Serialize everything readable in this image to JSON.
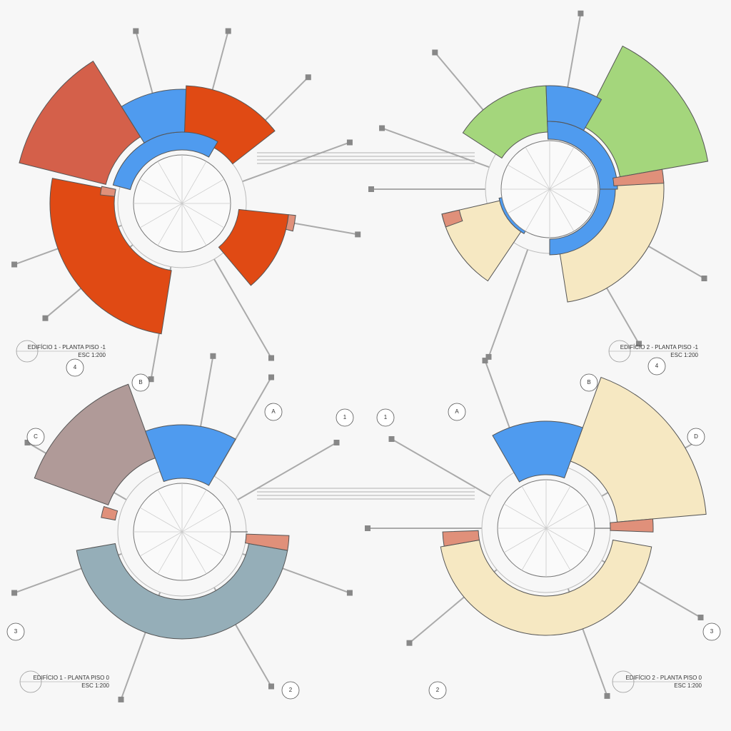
{
  "plans": [
    {
      "title": "EDIFÍCIO 1 - PLANTA PISO -1",
      "scale": "ESC 1:200"
    },
    {
      "title": "EDIFÍCIO 2 - PLANTA PISO -1",
      "scale": "ESC 1:200"
    },
    {
      "title": "EDIFÍCIO 1 - PLANTA PISO 0",
      "scale": "ESC 1:200",
      "grid_markers": [
        "4",
        "B",
        "A",
        "1",
        "C",
        "3",
        "2"
      ]
    },
    {
      "title": "EDIFÍCIO 2 - PLANTA PISO 0",
      "scale": "ESC 1:200",
      "grid_markers": [
        "1",
        "A",
        "B",
        "4",
        "D",
        "3",
        "2"
      ]
    }
  ]
}
